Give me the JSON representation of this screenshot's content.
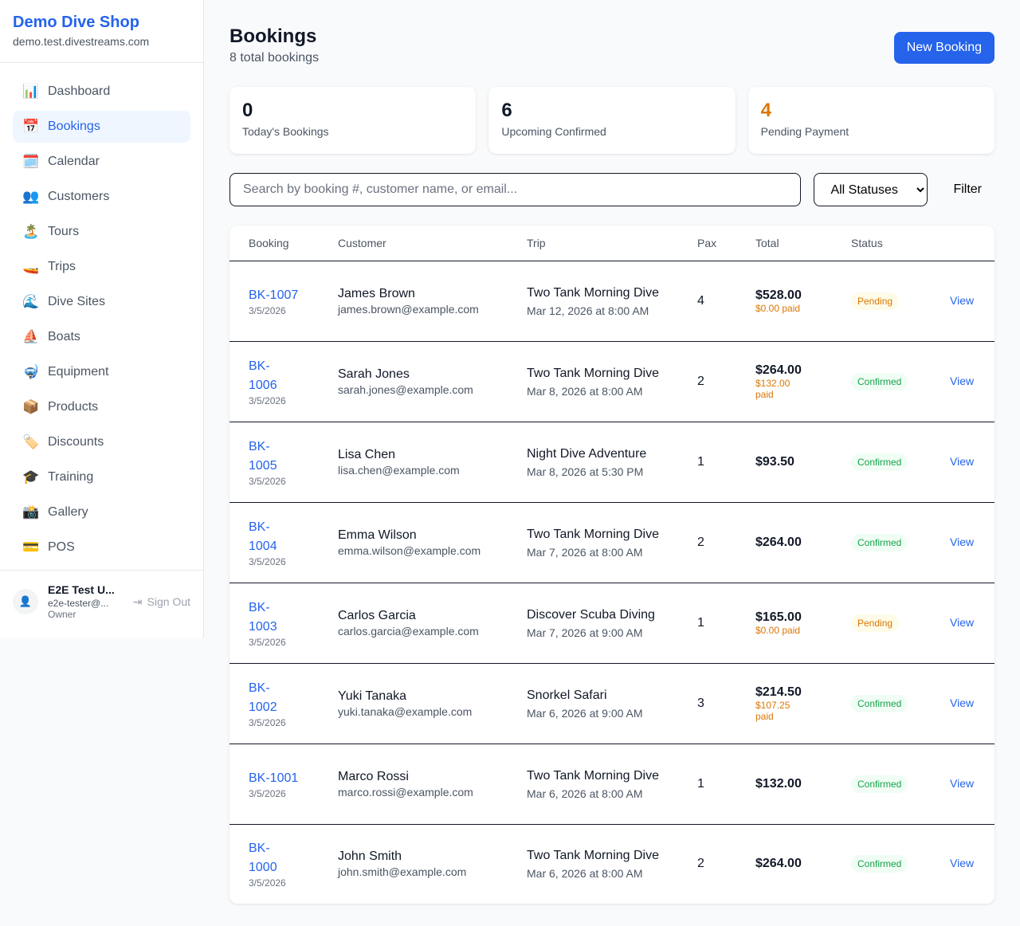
{
  "brand": {
    "name": "Demo Dive Shop",
    "domain": "demo.test.divestreams.com"
  },
  "nav": [
    {
      "icon": "📊",
      "icon_name": "bar-chart-icon",
      "label": "Dashboard"
    },
    {
      "icon": "📅",
      "icon_name": "calendar-date-icon",
      "label": "Bookings",
      "active": true
    },
    {
      "icon": "🗓️",
      "icon_name": "spiral-calendar-icon",
      "label": "Calendar"
    },
    {
      "icon": "👥",
      "icon_name": "people-icon",
      "label": "Customers"
    },
    {
      "icon": "🏝️",
      "icon_name": "island-icon",
      "label": "Tours"
    },
    {
      "icon": "🚤",
      "icon_name": "speedboat-icon",
      "label": "Trips"
    },
    {
      "icon": "🌊",
      "icon_name": "wave-icon",
      "label": "Dive Sites"
    },
    {
      "icon": "⛵",
      "icon_name": "sailboat-icon",
      "label": "Boats"
    },
    {
      "icon": "🤿",
      "icon_name": "diving-mask-icon",
      "label": "Equipment"
    },
    {
      "icon": "📦",
      "icon_name": "package-icon",
      "label": "Products"
    },
    {
      "icon": "🏷️",
      "icon_name": "tag-icon",
      "label": "Discounts"
    },
    {
      "icon": "🎓",
      "icon_name": "graduation-cap-icon",
      "label": "Training"
    },
    {
      "icon": "📸",
      "icon_name": "camera-icon",
      "label": "Gallery"
    },
    {
      "icon": "💳",
      "icon_name": "credit-card-icon",
      "label": "POS"
    }
  ],
  "user": {
    "name": "E2E Test U...",
    "email": "e2e-tester@...",
    "role": "Owner",
    "sign_out": "Sign Out"
  },
  "header": {
    "title": "Bookings",
    "subtitle": "8 total bookings",
    "new_button": "New Booking"
  },
  "stats": [
    {
      "value": "0",
      "label": "Today's Bookings",
      "color": "#111827"
    },
    {
      "value": "6",
      "label": "Upcoming Confirmed",
      "color": "#111827"
    },
    {
      "value": "4",
      "label": "Pending Payment",
      "color": "#d97706"
    }
  ],
  "filters": {
    "search_placeholder": "Search by booking #, customer name, or email...",
    "status_selected": "All Statuses",
    "filter_button": "Filter"
  },
  "table": {
    "columns": [
      "Booking",
      "Customer",
      "Trip",
      "Pax",
      "Total",
      "Status",
      ""
    ],
    "rows": [
      {
        "id": "BK-1007",
        "date": "3/5/2026",
        "customer": "James Brown",
        "email": "james.brown@example.com",
        "trip": "Two Tank Morning Dive",
        "trip_date": "Mar 12, 2026 at 8:00 AM",
        "pax": "4",
        "total": "$528.00",
        "paid": "$0.00 paid",
        "status": "Pending",
        "action": "View"
      },
      {
        "id": "BK-1006",
        "date": "3/5/2026",
        "customer": "Sarah Jones",
        "email": "sarah.jones@example.com",
        "trip": "Two Tank Morning Dive",
        "trip_date": "Mar 8, 2026 at 8:00 AM",
        "pax": "2",
        "total": "$264.00",
        "paid": "$132.00 paid",
        "status": "Confirmed",
        "action": "View"
      },
      {
        "id": "BK-1005",
        "date": "3/5/2026",
        "customer": "Lisa Chen",
        "email": "lisa.chen@example.com",
        "trip": "Night Dive Adventure",
        "trip_date": "Mar 8, 2026 at 5:30 PM",
        "pax": "1",
        "total": "$93.50",
        "paid": "",
        "status": "Confirmed",
        "action": "View"
      },
      {
        "id": "BK-1004",
        "date": "3/5/2026",
        "customer": "Emma Wilson",
        "email": "emma.wilson@example.com",
        "trip": "Two Tank Morning Dive",
        "trip_date": "Mar 7, 2026 at 8:00 AM",
        "pax": "2",
        "total": "$264.00",
        "paid": "",
        "status": "Confirmed",
        "action": "View"
      },
      {
        "id": "BK-1003",
        "date": "3/5/2026",
        "customer": "Carlos Garcia",
        "email": "carlos.garcia@example.com",
        "trip": "Discover Scuba Diving",
        "trip_date": "Mar 7, 2026 at 9:00 AM",
        "pax": "1",
        "total": "$165.00",
        "paid": "$0.00 paid",
        "status": "Pending",
        "action": "View"
      },
      {
        "id": "BK-1002",
        "date": "3/5/2026",
        "customer": "Yuki Tanaka",
        "email": "yuki.tanaka@example.com",
        "trip": "Snorkel Safari",
        "trip_date": "Mar 6, 2026 at 9:00 AM",
        "pax": "3",
        "total": "$214.50",
        "paid": "$107.25 paid",
        "status": "Confirmed",
        "action": "View"
      },
      {
        "id": "BK-1001",
        "date": "3/5/2026",
        "customer": "Marco Rossi",
        "email": "marco.rossi@example.com",
        "trip": "Two Tank Morning Dive",
        "trip_date": "Mar 6, 2026 at 8:00 AM",
        "pax": "1",
        "total": "$132.00",
        "paid": "",
        "status": "Confirmed",
        "action": "View"
      },
      {
        "id": "BK-1000",
        "date": "3/5/2026",
        "customer": "John Smith",
        "email": "john.smith@example.com",
        "trip": "Two Tank Morning Dive",
        "trip_date": "Mar 6, 2026 at 8:00 AM",
        "pax": "2",
        "total": "$264.00",
        "paid": "",
        "status": "Confirmed",
        "action": "View"
      }
    ]
  }
}
